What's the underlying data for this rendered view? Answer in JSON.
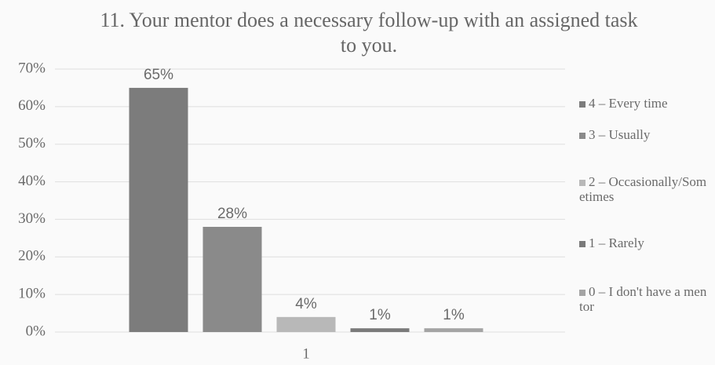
{
  "chart_data": {
    "type": "bar",
    "title": "11. Your mentor does a necessary follow-up with an assigned task to you.",
    "categories": [
      "1"
    ],
    "series": [
      {
        "name": "4 – Every time",
        "color": "#7c7c7c",
        "values": [
          65
        ],
        "value_labels": [
          "65%"
        ]
      },
      {
        "name": "3 – Usually",
        "color": "#8a8a8a",
        "values": [
          28
        ],
        "value_labels": [
          "28%"
        ]
      },
      {
        "name": "2 – Occasionally/Sometimes",
        "color": "#b8b8b8",
        "values": [
          4
        ],
        "value_labels": [
          "4%"
        ]
      },
      {
        "name": "1 – Rarely",
        "color": "#7a7a7a",
        "values": [
          1
        ],
        "value_labels": [
          "1%"
        ]
      },
      {
        "name": "0 – I don't have a mentor",
        "color": "#a4a4a4",
        "values": [
          1
        ],
        "value_labels": [
          "1%"
        ]
      }
    ],
    "ylim": [
      0,
      70
    ],
    "yticks": [
      {
        "value": 0,
        "label": "0%"
      },
      {
        "value": 10,
        "label": "10%"
      },
      {
        "value": 20,
        "label": "20%"
      },
      {
        "value": 30,
        "label": "30%"
      },
      {
        "value": 40,
        "label": "40%"
      },
      {
        "value": 50,
        "label": "50%"
      },
      {
        "value": 60,
        "label": "60%"
      },
      {
        "value": 70,
        "label": "70%"
      }
    ],
    "grid": true,
    "legend": "right"
  }
}
